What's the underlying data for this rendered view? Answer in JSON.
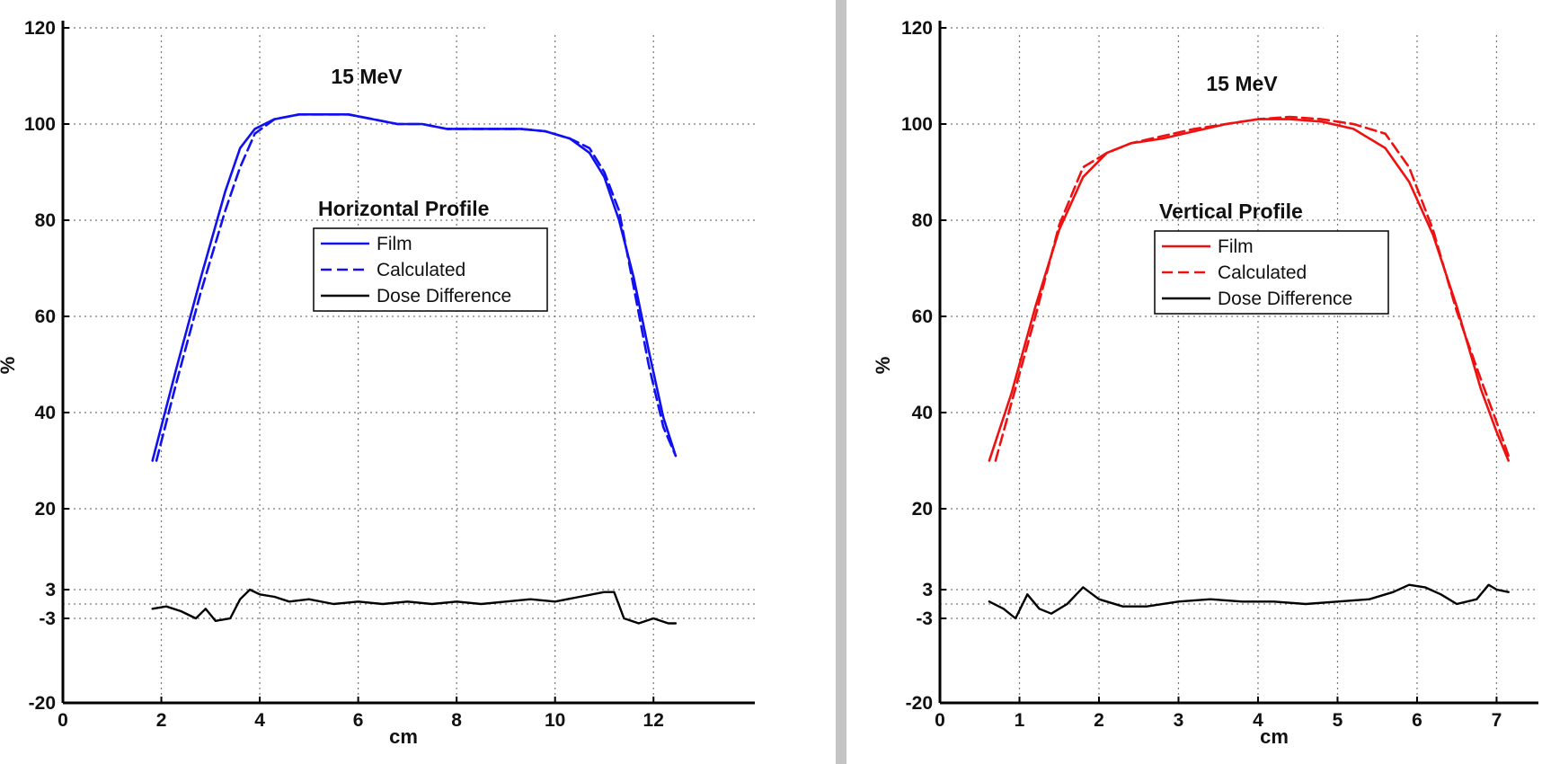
{
  "chart_data": [
    {
      "type": "line",
      "title": "15 MeV",
      "legend_title": "Horizontal Profile",
      "xlabel": "cm",
      "ylabel": "%",
      "xlim": [
        0,
        13
      ],
      "ylim": [
        -20,
        120
      ],
      "x_ticks": [
        0,
        2,
        4,
        6,
        8,
        10,
        12
      ],
      "y_ticks": [
        -20,
        -3,
        3,
        20,
        40,
        60,
        80,
        100,
        120
      ],
      "y_tick_labels": [
        "-20",
        "-3",
        "3",
        "20",
        "40",
        "60",
        "80",
        "100",
        "120"
      ],
      "grid": true,
      "legend_position": "center",
      "colors": {
        "film": "#1010f0",
        "calculated": "#1010f0",
        "difference": "#000000"
      },
      "series": [
        {
          "name": "Film",
          "style": "solid",
          "x": [
            1.82,
            2.3,
            2.8,
            3.3,
            3.6,
            3.9,
            4.3,
            4.8,
            5.3,
            5.8,
            6.3,
            6.8,
            7.3,
            7.8,
            8.3,
            8.8,
            9.3,
            9.8,
            10.3,
            10.7,
            11.0,
            11.3,
            11.6,
            11.9,
            12.2,
            12.45
          ],
          "y": [
            30,
            49,
            68,
            86,
            95,
            99,
            101,
            102,
            102,
            102,
            101,
            100,
            100,
            99,
            99,
            99,
            99,
            98.5,
            97,
            94,
            89,
            80,
            68,
            53,
            39,
            31
          ]
        },
        {
          "name": "Calculated",
          "style": "dashed",
          "x": [
            1.9,
            2.3,
            2.8,
            3.3,
            3.6,
            3.9,
            4.3,
            4.8,
            5.3,
            5.8,
            6.3,
            6.8,
            7.3,
            7.8,
            8.3,
            8.8,
            9.3,
            9.8,
            10.3,
            10.7,
            11.0,
            11.3,
            11.6,
            11.9,
            12.2,
            12.45
          ],
          "y": [
            30,
            46,
            65,
            82,
            91,
            98,
            101,
            102,
            102,
            102,
            101,
            100,
            100,
            99,
            99,
            99,
            99,
            98.5,
            97,
            95,
            90,
            82,
            66,
            50,
            37,
            31
          ]
        },
        {
          "name": "Dose Difference",
          "style": "solid",
          "x": [
            1.82,
            2.1,
            2.4,
            2.7,
            2.9,
            3.1,
            3.4,
            3.6,
            3.8,
            4.0,
            4.3,
            4.6,
            5.0,
            5.5,
            6.0,
            6.5,
            7.0,
            7.5,
            8.0,
            8.5,
            9.0,
            9.5,
            10.0,
            10.5,
            11.0,
            11.2,
            11.4,
            11.7,
            12.0,
            12.3,
            12.45
          ],
          "y": [
            -1,
            -0.5,
            -1.5,
            -3,
            -1,
            -3.5,
            -3,
            1,
            3,
            2,
            1.5,
            0.5,
            1,
            0,
            0.5,
            0,
            0.5,
            0,
            0.5,
            0,
            0.5,
            1,
            0.5,
            1.5,
            2.5,
            2.5,
            -3,
            -4,
            -3,
            -4,
            -4
          ]
        }
      ]
    },
    {
      "type": "line",
      "title": "15 MeV",
      "legend_title": "Vertical Profile",
      "xlabel": "cm",
      "ylabel": "%",
      "xlim": [
        0,
        7.3
      ],
      "ylim": [
        -20,
        120
      ],
      "x_ticks": [
        0,
        1,
        2,
        3,
        4,
        5,
        6,
        7
      ],
      "y_ticks": [
        -20,
        -3,
        3,
        20,
        40,
        60,
        80,
        100,
        120
      ],
      "y_tick_labels": [
        "-20",
        "-3",
        "3",
        "20",
        "40",
        "60",
        "80",
        "100",
        "120"
      ],
      "grid": true,
      "legend_position": "center",
      "colors": {
        "film": "#ee1111",
        "calculated": "#ee1111",
        "difference": "#000000"
      },
      "series": [
        {
          "name": "Film",
          "style": "solid",
          "x": [
            0.62,
            0.9,
            1.2,
            1.5,
            1.8,
            2.1,
            2.4,
            2.8,
            3.2,
            3.6,
            4.0,
            4.4,
            4.8,
            5.2,
            5.6,
            5.9,
            6.2,
            6.5,
            6.8,
            7.0,
            7.15
          ],
          "y": [
            30,
            44,
            62,
            78,
            89,
            94,
            96,
            97,
            98.5,
            100,
            101,
            101,
            100.5,
            99,
            95,
            88,
            77,
            62,
            45,
            36,
            30
          ]
        },
        {
          "name": "Calculated",
          "style": "dashed",
          "x": [
            0.7,
            0.9,
            1.2,
            1.5,
            1.8,
            2.1,
            2.4,
            2.8,
            3.2,
            3.6,
            4.0,
            4.4,
            4.8,
            5.2,
            5.6,
            5.9,
            6.2,
            6.5,
            6.8,
            7.0,
            7.15
          ],
          "y": [
            30,
            42,
            60,
            79,
            91,
            94,
            96,
            97.5,
            99,
            100,
            101,
            101.5,
            101,
            100,
            98,
            91,
            78,
            61,
            47,
            38,
            31
          ]
        },
        {
          "name": "Dose Difference",
          "style": "solid",
          "x": [
            0.62,
            0.8,
            0.95,
            1.1,
            1.25,
            1.4,
            1.6,
            1.8,
            2.0,
            2.3,
            2.6,
            3.0,
            3.4,
            3.8,
            4.2,
            4.6,
            5.0,
            5.4,
            5.7,
            5.9,
            6.1,
            6.3,
            6.5,
            6.75,
            6.9,
            7.0,
            7.15
          ],
          "y": [
            0.5,
            -1,
            -3,
            2,
            -1,
            -2,
            0,
            3.5,
            1,
            -0.5,
            -0.5,
            0.5,
            1,
            0.5,
            0.5,
            0,
            0.5,
            1,
            2.5,
            4,
            3.5,
            2,
            0,
            1,
            4,
            3,
            2.5
          ]
        }
      ]
    }
  ]
}
